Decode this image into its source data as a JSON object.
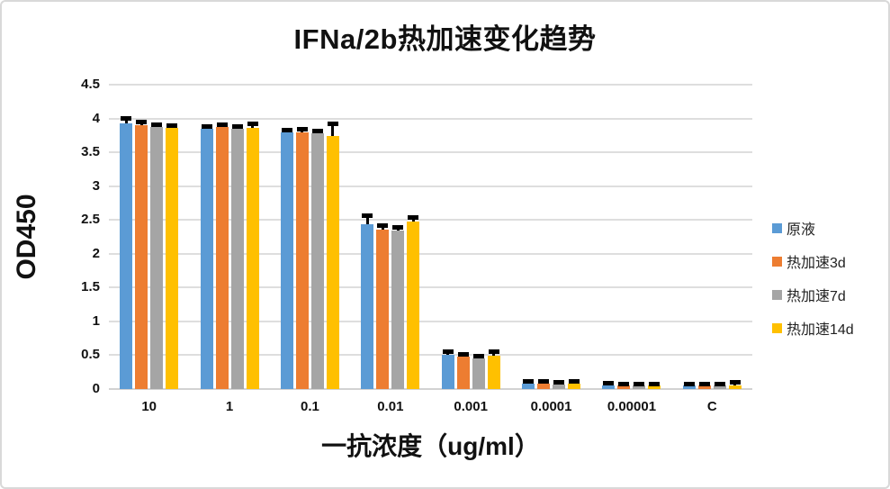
{
  "window": {
    "background": "#ffffff",
    "border_color": "#d9d9d9"
  },
  "chart_data": {
    "type": "bar",
    "title": "IFNa/2b热加速变化趋势",
    "xlabel": "一抗浓度（ug/ml）",
    "ylabel": "OD450",
    "ylim": [
      0,
      4.5
    ],
    "ytick_step": 0.5,
    "grid": true,
    "legend_position": "right",
    "error_bars": "plus",
    "categories": [
      "10",
      "1",
      "0.1",
      "0.01",
      "0.001",
      "0.0001",
      "0.00001",
      "C"
    ],
    "series": [
      {
        "name": "原液",
        "color": "#5B9BD5",
        "values": [
          3.93,
          3.85,
          3.79,
          2.43,
          0.5,
          0.08,
          0.06,
          0.05
        ],
        "errors": [
          0.06,
          0.03,
          0.03,
          0.12,
          0.04,
          0.03,
          0.02,
          0.02
        ]
      },
      {
        "name": "热加速3d",
        "color": "#ED7D31",
        "values": [
          3.9,
          3.87,
          3.8,
          2.36,
          0.48,
          0.08,
          0.05,
          0.05
        ],
        "errors": [
          0.04,
          0.03,
          0.03,
          0.05,
          0.03,
          0.03,
          0.02,
          0.02
        ]
      },
      {
        "name": "热加速7d",
        "color": "#A5A5A5",
        "values": [
          3.87,
          3.85,
          3.78,
          2.34,
          0.45,
          0.07,
          0.05,
          0.05
        ],
        "errors": [
          0.03,
          0.03,
          0.03,
          0.05,
          0.03,
          0.03,
          0.02,
          0.02
        ]
      },
      {
        "name": "热加速14d",
        "color": "#FFC000",
        "values": [
          3.86,
          3.86,
          3.74,
          2.47,
          0.49,
          0.08,
          0.05,
          0.06
        ],
        "errors": [
          0.03,
          0.05,
          0.17,
          0.06,
          0.06,
          0.03,
          0.02,
          0.03
        ]
      }
    ]
  }
}
